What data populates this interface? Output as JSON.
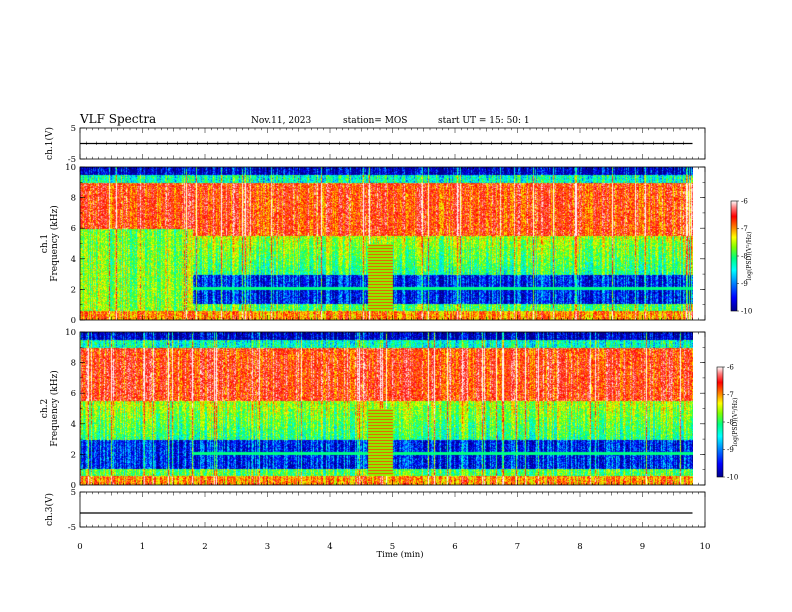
{
  "header": {
    "title": "VLF Spectra",
    "date": "Nov.11, 2023",
    "station": "station= MOS",
    "start": "start  UT  =   15: 50: 1"
  },
  "chart_data": [
    {
      "type": "line",
      "ylabel": "ch.1(V)",
      "ylim": [
        -5,
        5
      ],
      "yticks": [
        "5",
        "-5"
      ],
      "series": [
        {
          "x": [
            0,
            9.8
          ],
          "y": [
            0,
            0
          ]
        }
      ]
    },
    {
      "type": "heatmap",
      "ylabel": "ch.1\nFrequency (kHz)",
      "ylim": [
        0,
        10
      ],
      "yticks": [
        "10",
        "8",
        "6",
        "4",
        "2",
        "0"
      ],
      "colorbar": {
        "label": "log(PSD)(V²/Hz)",
        "range": [
          -10,
          -6
        ],
        "ticks": [
          "-6",
          "-7",
          "-8",
          "-9",
          "-10"
        ]
      }
    },
    {
      "type": "heatmap",
      "ylabel": "ch.2\nFrequency (kHz)",
      "ylim": [
        0,
        10
      ],
      "yticks": [
        "10",
        "8",
        "6",
        "4",
        "2",
        "0"
      ],
      "colorbar": {
        "label": "log(PSD)(V²/Hz)",
        "range": [
          -10,
          -6
        ],
        "ticks": [
          "-6",
          "-7",
          "-8",
          "-9",
          "-10"
        ]
      }
    },
    {
      "type": "line",
      "ylabel": "ch.3(V)",
      "ylim": [
        -5,
        5
      ],
      "yticks": [
        "5",
        "-5"
      ],
      "xlabel": "Time  (min)",
      "xlim": [
        0,
        10
      ],
      "xticks": [
        "0",
        "1",
        "2",
        "3",
        "4",
        "5",
        "6",
        "7",
        "8",
        "9",
        "10"
      ],
      "series": [
        {
          "x": [
            0,
            9.8
          ],
          "y": [
            -1,
            -1
          ]
        }
      ]
    }
  ],
  "colors": {
    "colormap": [
      "#00008b",
      "#0000ff",
      "#0080ff",
      "#00ffff",
      "#00ff80",
      "#80ff00",
      "#ffff00",
      "#ff8000",
      "#ff0000",
      "#ff8080",
      "#ffffff"
    ]
  }
}
